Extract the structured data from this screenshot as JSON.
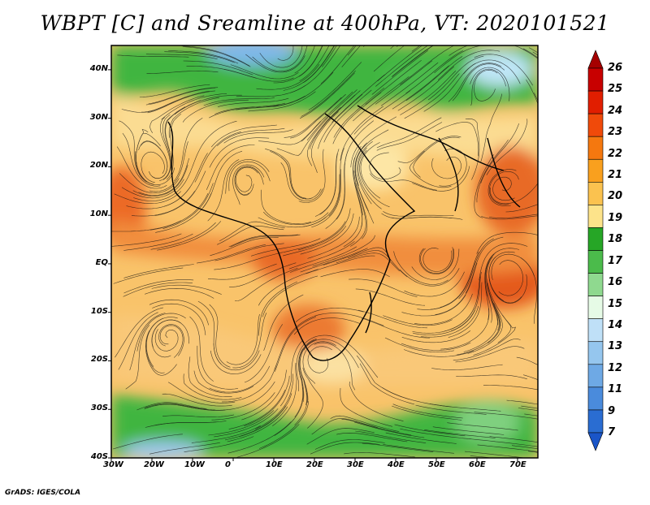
{
  "title": "WBPT [C] and Sreamline at 400hPa, VT: 2020101521",
  "footer": "GrADS: IGES/COLA",
  "map": {
    "lat_labels": [
      "40N",
      "30N",
      "20N",
      "10N",
      "EQ",
      "10S",
      "20S",
      "30S",
      "40S"
    ],
    "lon_labels": [
      "30W",
      "20W",
      "10W",
      "0",
      "10E",
      "20E",
      "30E",
      "40E",
      "50E",
      "60E",
      "70E"
    ],
    "extent": {
      "lon_min": -30,
      "lon_max": 75,
      "lat_min": -40,
      "lat_max": 45
    }
  },
  "colorbar": {
    "labels": [
      "26",
      "25",
      "24",
      "23",
      "22",
      "21",
      "20",
      "19",
      "18",
      "17",
      "16",
      "15",
      "14",
      "13",
      "12",
      "11",
      "9",
      "7"
    ],
    "colors": [
      "#a50000",
      "#c80000",
      "#e11e00",
      "#f04a0a",
      "#f5780f",
      "#f9a01e",
      "#fbc24f",
      "#fde38a",
      "#26a626",
      "#4bbb4b",
      "#8fd98f",
      "#e6fbe6",
      "#bfe0f7",
      "#95c6ee",
      "#6ea9e5",
      "#4a8bdc",
      "#2a6dd2",
      "#1a55c8"
    ]
  },
  "field_colors": {
    "yellow": "#fbd98c",
    "orange": "#f7b75c",
    "deep_orange": "#f08a3a",
    "red_orange": "#e06020",
    "green": "#3fb53f",
    "light_green": "#8ad98a",
    "blue": "#8ec3ef",
    "frame": "#000000"
  }
}
